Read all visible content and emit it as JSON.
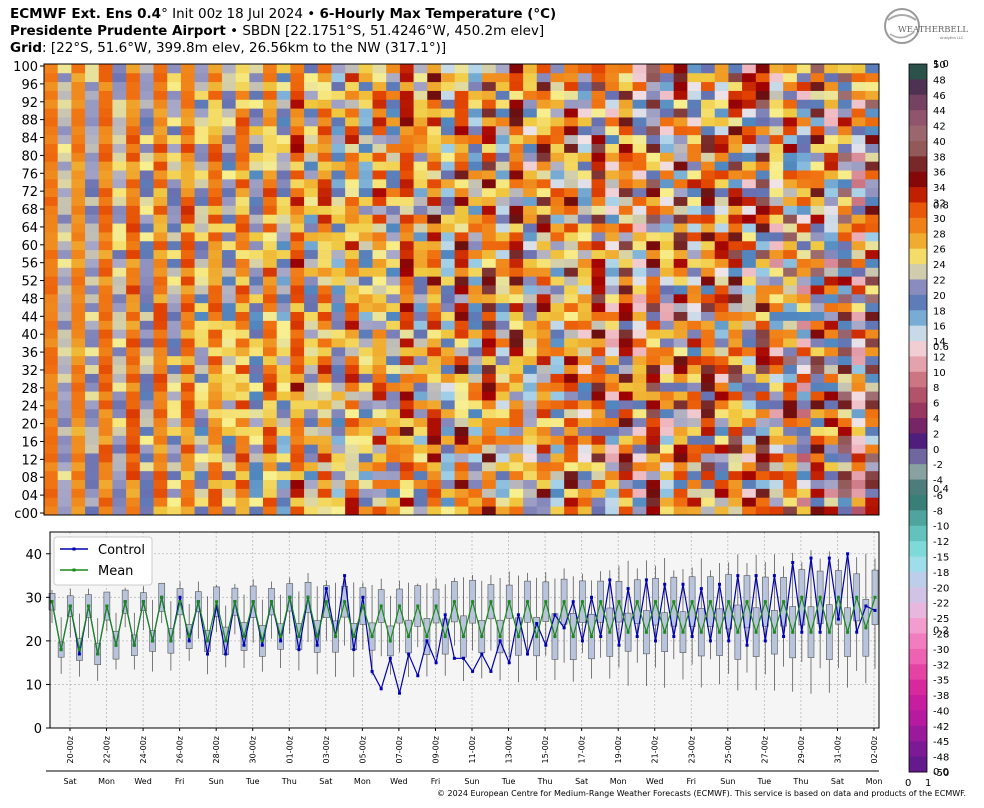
{
  "header": {
    "line1_bold_a": "ECMWF Ext.  Ens 0.4",
    "line1_deg": "°",
    "line1_plain": " Init 00z 18 Jul 2024 • ",
    "line1_bold_b": "6-Hourly Max Temperature (°C)",
    "line2_bold": "Presidente Prudente Airport",
    "line2_plain": " • SBDN [22.1751°S, 51.4246°W, 450.2m elev]",
    "line3_bold": "Grid",
    "line3_plain": ": [22°S, 51.6°W, 399.8m elev, 26.56km to the NW (317.1°)]"
  },
  "logo": {
    "text": "WEATHERBELL",
    "subtext": "Analytics LLC"
  },
  "footer": "© 2024 European Centre for Medium-Range Weather Forecasts (ECMWF). This service is based on data and products of the ECMWF.",
  "chart_data": [
    {
      "type": "heatmap",
      "title": "6-Hourly Max Temperature (°C) ensemble members",
      "ylabel": "",
      "y_tick_labels": [
        "c00",
        "04",
        "08",
        "12",
        "16",
        "20",
        "24",
        "28",
        "32",
        "36",
        "40",
        "44",
        "48",
        "52",
        "56",
        "60",
        "64",
        "68",
        "72",
        "76",
        "80",
        "84",
        "88",
        "92",
        "96",
        "100"
      ],
      "members": 51,
      "steps": 61,
      "colorbar": {
        "labels": [
          "50",
          "48",
          "46",
          "44",
          "42",
          "40",
          "38",
          "36",
          "34",
          "32",
          "30",
          "28",
          "26",
          "24",
          "22",
          "20",
          "18",
          "16",
          "14",
          "12",
          "10",
          "8",
          "6",
          "4",
          "2",
          "0",
          "-2",
          "-4",
          "-6",
          "-8",
          "-10",
          "-12",
          "-15",
          "-18",
          "-20",
          "-22",
          "-25",
          "-28",
          "-30",
          "-32",
          "-35",
          "-38",
          "-40",
          "-42",
          "-45",
          "-48",
          "-50"
        ],
        "overlay_labels": [
          "1.0",
          "0.8",
          "0.6",
          "0.4",
          "0.2",
          "0.0"
        ],
        "bottom_labels": [
          "0",
          "1"
        ]
      }
    },
    {
      "type": "line",
      "ylim": [
        0,
        45
      ],
      "yticks": [
        "0",
        "10",
        "20",
        "30",
        "40"
      ],
      "grid": true,
      "legend": "top-left",
      "series": [
        {
          "name": "Control",
          "color": "#0000b4",
          "values": [
            29,
            18,
            28,
            17,
            28,
            17,
            28,
            19,
            29,
            19,
            29,
            20,
            30,
            20,
            30,
            20,
            29,
            17,
            28,
            17,
            29,
            19,
            29,
            19,
            29,
            20,
            30,
            18,
            30,
            19,
            32,
            21,
            35,
            18,
            30,
            13,
            9,
            16,
            8,
            17,
            12,
            20,
            15,
            26,
            16,
            16,
            13,
            17,
            13,
            20,
            15,
            26,
            17,
            24,
            19,
            26,
            23,
            29,
            20,
            30,
            21,
            34,
            19,
            32,
            21,
            34,
            20,
            33,
            21,
            33,
            21,
            32,
            20,
            33,
            20,
            35,
            19,
            35,
            20,
            35,
            21,
            38,
            22,
            39,
            22,
            39,
            25,
            40,
            22,
            28,
            27
          ]
        },
        {
          "name": "Mean",
          "color": "#1a8a1a",
          "values": [
            29,
            18,
            28,
            18,
            28,
            17,
            28,
            19,
            29,
            19,
            29,
            20,
            30,
            20,
            29,
            21,
            29,
            20,
            29,
            20,
            29,
            21,
            29,
            20,
            29,
            21,
            30,
            21,
            30,
            21,
            29,
            21,
            29,
            21,
            28,
            21,
            28,
            20,
            28,
            21,
            28,
            21,
            28,
            21,
            29,
            21,
            29,
            21,
            29,
            21,
            29,
            21,
            29,
            21,
            29,
            21,
            29,
            21,
            29,
            21,
            29,
            22,
            29,
            22,
            29,
            22,
            29,
            22,
            29,
            22,
            29,
            22,
            29,
            22,
            29,
            22,
            29,
            22,
            29,
            22,
            29,
            22,
            30,
            22,
            30,
            22,
            30,
            22,
            30,
            23,
            30
          ]
        }
      ],
      "x_date_labels": [
        "20-00z",
        "22-00z",
        "24-00z",
        "26-00z",
        "28-00z",
        "30-00z",
        "01-00z",
        "03-00z",
        "05-00z",
        "07-00z",
        "09-00z",
        "11-00z",
        "13-00z",
        "15-00z",
        "17-00z",
        "19-00z",
        "21-00z",
        "23-00z",
        "25-00z",
        "27-00z",
        "29-00z",
        "31-00z",
        "02-00z"
      ],
      "x_day_labels": [
        "Sat",
        "Mon",
        "Wed",
        "Fri",
        "Sun",
        "Tue",
        "Thu",
        "Sat",
        "Mon",
        "Wed",
        "Fri",
        "Sun",
        "Tue",
        "Thu",
        "Sat",
        "Mon",
        "Wed",
        "Fri",
        "Sun",
        "Tue",
        "Thu",
        "Sat",
        "Mon"
      ]
    }
  ]
}
